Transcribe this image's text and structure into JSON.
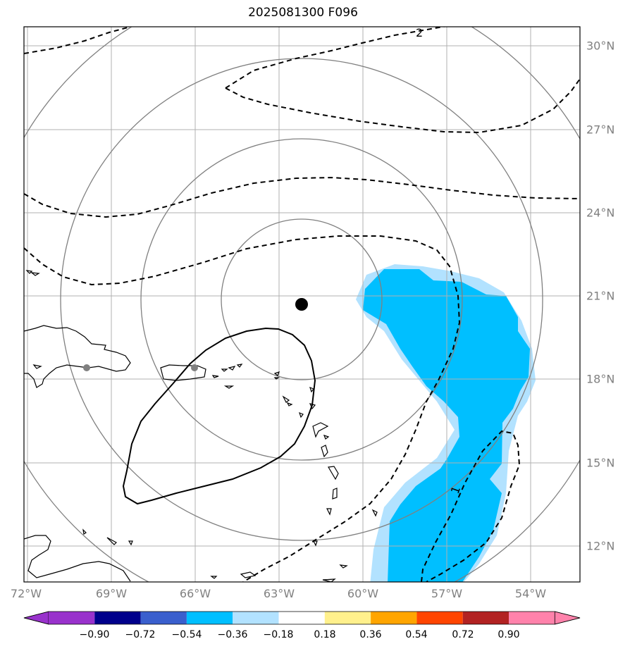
{
  "title": "2025081300 F096",
  "map": {
    "lon_labels": [
      "72°W",
      "69°W",
      "66°W",
      "63°W",
      "60°W",
      "57°W",
      "54°W"
    ],
    "lat_labels": [
      "30°N",
      "27°N",
      "24°N",
      "21°N",
      "18°N",
      "15°N",
      "12°N"
    ],
    "storm_center": {
      "lat": "20.7°N",
      "lon": "62.3°W"
    },
    "range_rings": 4,
    "contour_labels": [
      "2",
      "1"
    ]
  },
  "colorbar": {
    "labels": [
      "−0.90",
      "−0.72",
      "−0.54",
      "−0.36",
      "−0.18",
      "0.18",
      "0.36",
      "0.54",
      "0.72",
      "0.90"
    ],
    "colors": [
      "#9932cc",
      "#00008b",
      "#3a5fcd",
      "#00bfff",
      "#b2e2ff",
      "#ffffff",
      "#fff08c",
      "#ffa500",
      "#ff4500",
      "#b22222",
      "#ff82ab"
    ]
  },
  "colors": {
    "shading_primary": "#00bfff",
    "shading_edge": "#b2e2ff",
    "grid": "#b0b0b0",
    "rings": "#808080"
  }
}
